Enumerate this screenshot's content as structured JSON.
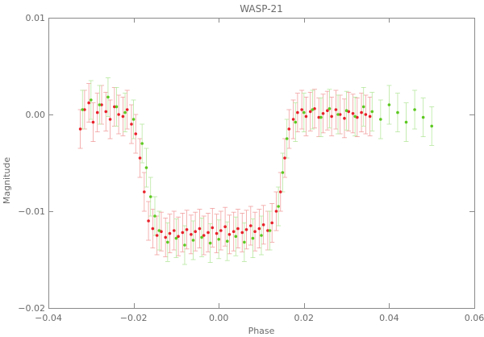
{
  "chart_data": {
    "type": "scatter",
    "title": "WASP-21",
    "xlabel": "Phase",
    "ylabel": "Magnitude",
    "xlim": [
      -0.04,
      0.06
    ],
    "ylim": [
      -0.02,
      0.01
    ],
    "x_ticks": [
      -0.04,
      -0.02,
      0.0,
      0.02,
      0.04,
      0.06
    ],
    "x_tick_labels": [
      "−0.04",
      "−0.02",
      "0.00",
      "0.02",
      "0.04",
      "0.06"
    ],
    "y_ticks": [
      0.01,
      0.0,
      -0.01,
      -0.02
    ],
    "y_tick_labels": [
      "0.01",
      "0.00",
      "−0.01",
      "−0.02"
    ],
    "grid": false,
    "legend": "none",
    "series": [
      {
        "color": "#e8202a",
        "errorbar_color": "#f2a0a0",
        "x": [
          -0.0325,
          -0.0315,
          -0.0305,
          -0.0295,
          -0.0285,
          -0.0275,
          -0.0265,
          -0.0255,
          -0.0245,
          -0.0235,
          -0.0225,
          -0.0215,
          -0.0205,
          -0.0195,
          -0.0185,
          -0.0175,
          -0.0165,
          -0.0155,
          -0.0145,
          -0.0135,
          -0.0125,
          -0.0115,
          -0.0105,
          -0.0095,
          -0.0085,
          -0.0075,
          -0.0065,
          -0.0055,
          -0.0045,
          -0.0035,
          -0.0025,
          -0.0015,
          -0.0005,
          0.0005,
          0.0015,
          0.0025,
          0.0035,
          0.0045,
          0.0055,
          0.0065,
          0.0075,
          0.0085,
          0.0095,
          0.0105,
          0.0115,
          0.0125,
          0.0135,
          0.0145,
          0.0155,
          0.0165,
          0.0175,
          0.0185,
          0.0195,
          0.0205,
          0.0215,
          0.0225,
          0.0235,
          0.0245,
          0.0255,
          0.0265,
          0.0275,
          0.0285,
          0.0295,
          0.0305,
          0.0315,
          0.0325,
          0.0335,
          0.0345,
          0.0355
        ],
        "y": [
          -0.0015,
          0.0005,
          0.0012,
          -0.0008,
          0.0002,
          0.001,
          0.0003,
          -0.0005,
          0.0008,
          0.0,
          -0.0002,
          0.0005,
          -0.001,
          -0.002,
          -0.0045,
          -0.008,
          -0.011,
          -0.0118,
          -0.0125,
          -0.0121,
          -0.0127,
          -0.0123,
          -0.012,
          -0.0126,
          -0.0122,
          -0.0119,
          -0.0124,
          -0.0121,
          -0.0118,
          -0.0125,
          -0.0122,
          -0.0117,
          -0.0123,
          -0.012,
          -0.0116,
          -0.0124,
          -0.0121,
          -0.0118,
          -0.0122,
          -0.0119,
          -0.0115,
          -0.0121,
          -0.0118,
          -0.0114,
          -0.012,
          -0.0112,
          -0.01,
          -0.008,
          -0.0045,
          -0.0015,
          -0.0005,
          0.0002,
          0.0005,
          -0.0002,
          0.0003,
          0.0006,
          -0.0003,
          0.0001,
          0.0004,
          -0.0002,
          0.0005,
          0.0,
          -0.0004,
          0.0003,
          0.0001,
          -0.0003,
          0.0002,
          0.0,
          -0.0002
        ],
        "yerr": 0.002
      },
      {
        "color": "#5cc820",
        "errorbar_color": "#b8e8a0",
        "x": [
          -0.032,
          -0.03,
          -0.028,
          -0.026,
          -0.024,
          -0.022,
          -0.02,
          -0.018,
          -0.017,
          -0.016,
          -0.015,
          -0.014,
          -0.012,
          -0.01,
          -0.008,
          -0.006,
          -0.004,
          -0.002,
          0.0,
          0.002,
          0.004,
          0.006,
          0.008,
          0.01,
          0.012,
          0.014,
          0.015,
          0.016,
          0.018,
          0.02,
          0.022,
          0.024,
          0.026,
          0.028,
          0.03,
          0.032,
          0.034,
          0.036,
          0.038,
          0.04,
          0.042,
          0.044,
          0.046,
          0.048,
          0.05
        ],
        "y": [
          0.0005,
          0.0015,
          0.001,
          0.0018,
          0.0008,
          0.0002,
          -0.0005,
          -0.003,
          -0.0055,
          -0.0085,
          -0.0105,
          -0.012,
          -0.0132,
          -0.0128,
          -0.0135,
          -0.013,
          -0.0127,
          -0.0133,
          -0.0129,
          -0.0131,
          -0.0126,
          -0.0132,
          -0.0128,
          -0.0125,
          -0.012,
          -0.0095,
          -0.006,
          -0.0025,
          -0.0008,
          0.0002,
          0.0005,
          -0.0003,
          0.0006,
          0.0,
          0.0004,
          -0.0002,
          0.0008,
          0.0003,
          -0.0005,
          0.001,
          0.0002,
          -0.0008,
          0.0005,
          -0.0003,
          -0.0012
        ],
        "yerr": 0.002
      }
    ]
  }
}
